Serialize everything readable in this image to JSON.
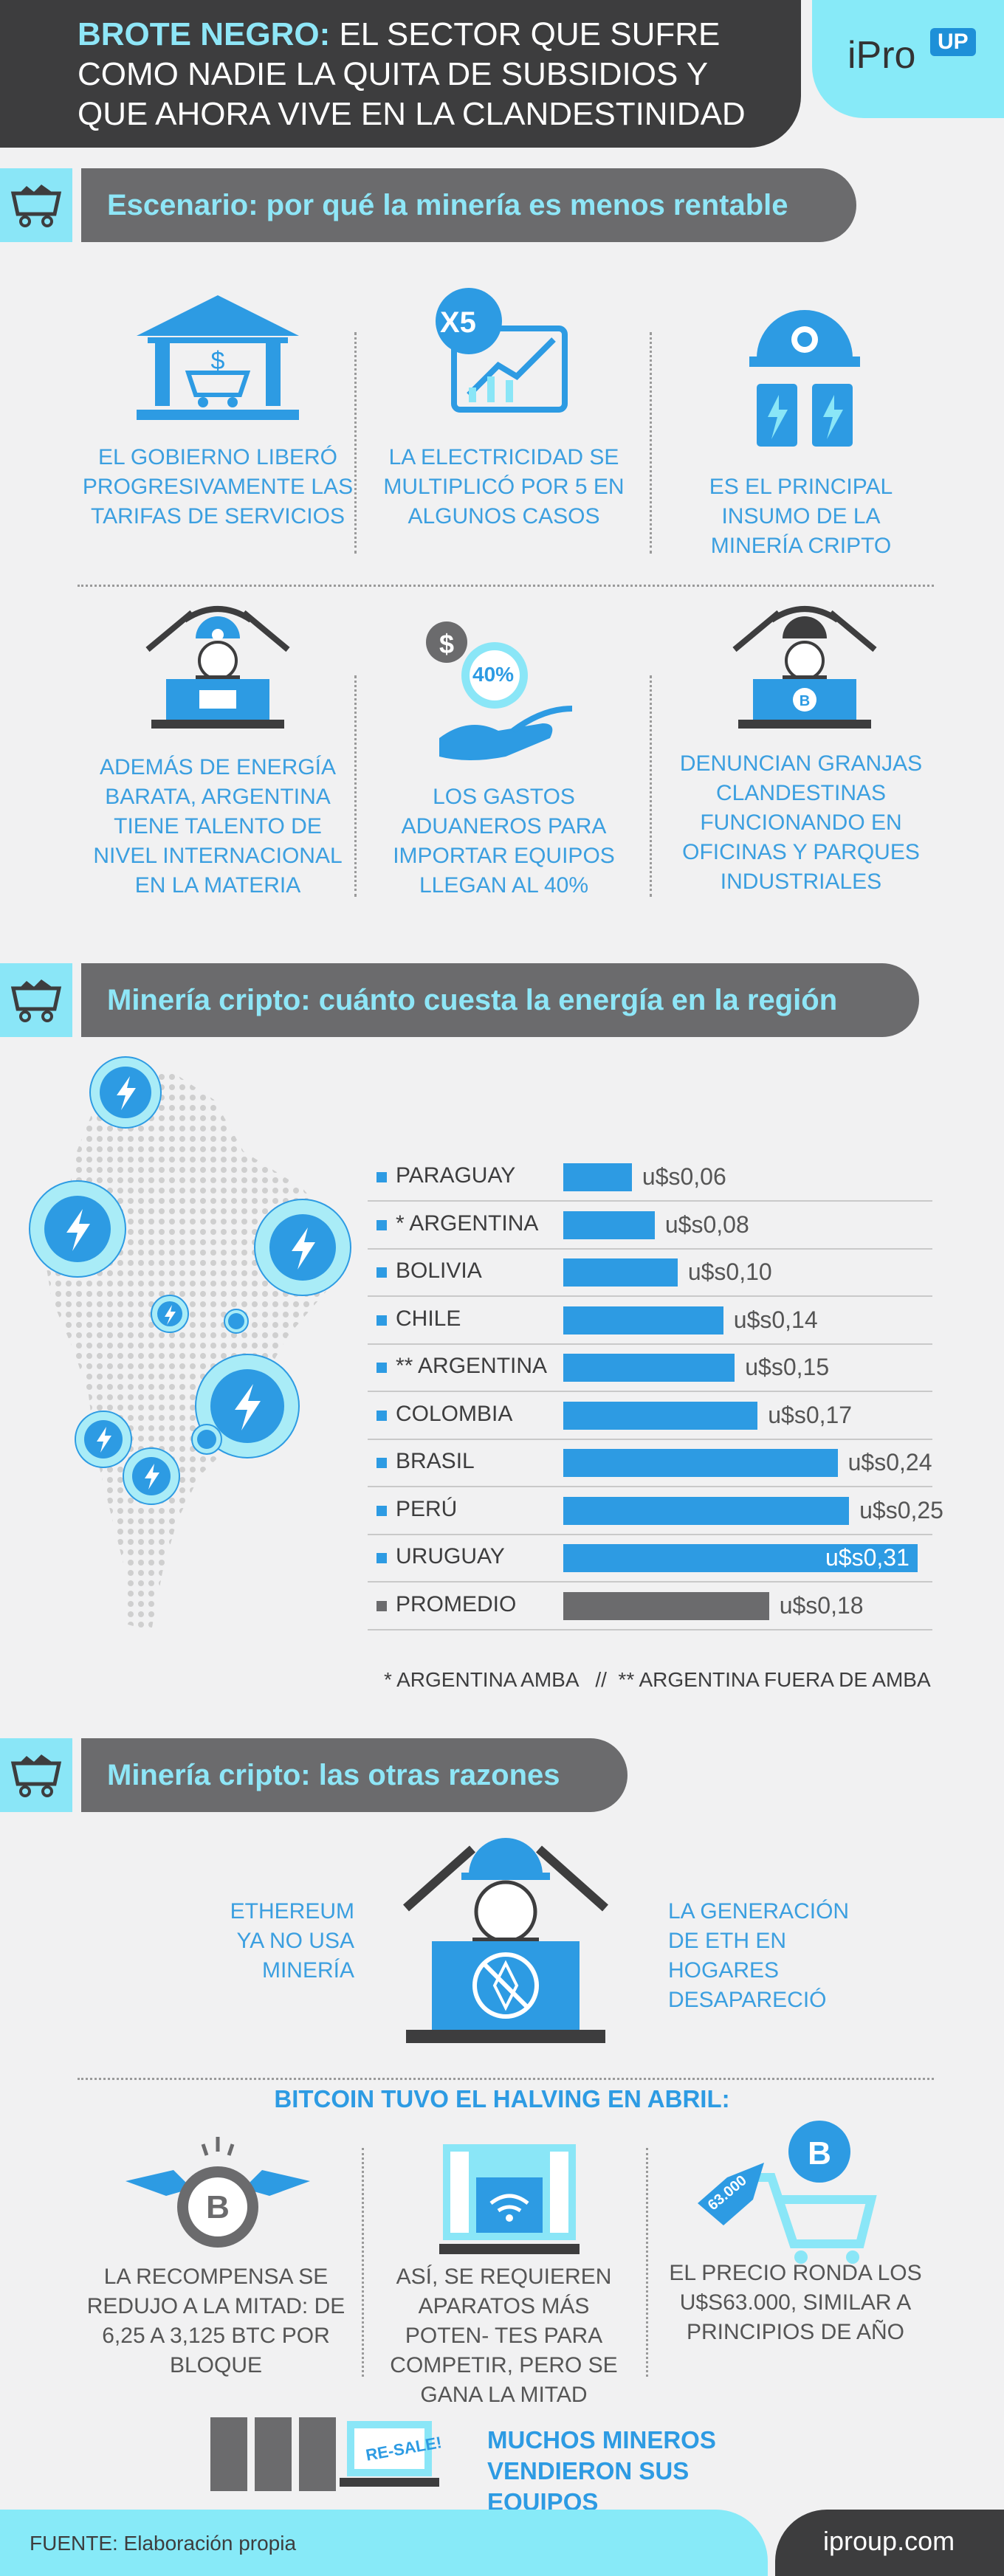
{
  "header": {
    "title_bold": "BROTE NEGRO:",
    "title_rest": " EL SECTOR QUE SUFRE COMO NADIE LA QUITA DE SUBSIDIOS Y QUE AHORA VIVE EN LA CLANDESTINIDAD",
    "logo": "iPro",
    "logo_badge": "UP"
  },
  "sections": {
    "s1": "Escenario: por qué la minería es menos rentable",
    "s2": "Minería cripto: cuánto cuesta la energía en la región",
    "s3": "Minería cripto: las otras razones"
  },
  "scenario": {
    "c1": "EL GOBIERNO LIBERÓ PROGRESIVAMENTE LAS TARIFAS DE SERVICIOS",
    "c2": "LA ELECTRICIDAD SE MULTIPLICÓ POR 5 EN ALGUNOS CASOS",
    "c2_badge": "X5",
    "c3": "ES EL PRINCIPAL INSUMO DE LA MINERÍA CRIPTO",
    "c4": "ADEMÁS DE ENERGÍA BARATA, ARGENTINA TIENE TALENTO DE NIVEL INTERNACIONAL EN LA MATERIA",
    "c5": "LOS GASTOS ADUANEROS PARA IMPORTAR EQUIPOS LLEGAN AL 40%",
    "c5_badge": "40%",
    "c5_dollar": "$",
    "c6": "DENUNCIAN GRANJAS CLANDESTINAS FUNCIONANDO EN OFICINAS Y PARQUES INDUSTRIALES"
  },
  "chart_data": {
    "type": "bar",
    "title": "Minería cripto: cuánto cuesta la energía en la región",
    "categories": [
      "PARAGUAY",
      "* ARGENTINA",
      "BOLIVIA",
      "CHILE",
      "** ARGENTINA",
      "COLOMBIA",
      "BRASIL",
      "PERÚ",
      "URUGUAY",
      "PROMEDIO"
    ],
    "values": [
      0.06,
      0.08,
      0.1,
      0.14,
      0.15,
      0.17,
      0.24,
      0.25,
      0.31,
      0.18
    ],
    "labels": [
      "u$s0,06",
      "u$s0,08",
      "u$s0,10",
      "u$s0,14",
      "u$s0,15",
      "u$s0,17",
      "u$s0,24",
      "u$s0,25",
      "u$s0,31",
      "u$s0,18"
    ],
    "max": 0.31,
    "note": "* ARGENTINA AMBA   //  ** ARGENTINA FUERA DE AMBA"
  },
  "reasons": {
    "eth": "ETHEREUM YA NO USA MINERÍA",
    "gen": "LA GENERACIÓN DE ETH EN HOGARES DESAPARECIÓ",
    "halving_title": "BITCOIN TUVO EL HALVING EN ABRIL:",
    "h1": "LA RECOMPENSA SE REDUJO A LA MITAD: DE 6,25 A 3,125 BTC POR BLOQUE",
    "h2": "ASÍ, SE REQUIEREN APARATOS MÁS POTEN- TES PARA COMPETIR, PERO SE GANA LA MITAD",
    "h3": "EL PRECIO RONDA LOS U$S63.000, SIMILAR A PRINCIPIOS DE AÑO",
    "price_tag": "63.000",
    "resale": "RE-SALE!",
    "sold": "MUCHOS MINEROS VENDIERON SUS EQUIPOS"
  },
  "footer": {
    "source": "FUENTE: Elaboración propia",
    "site": "iproup.com"
  },
  "colors": {
    "accent": "#2d9be3",
    "cyan": "#87eaf8",
    "dark": "#3d3d3e"
  }
}
